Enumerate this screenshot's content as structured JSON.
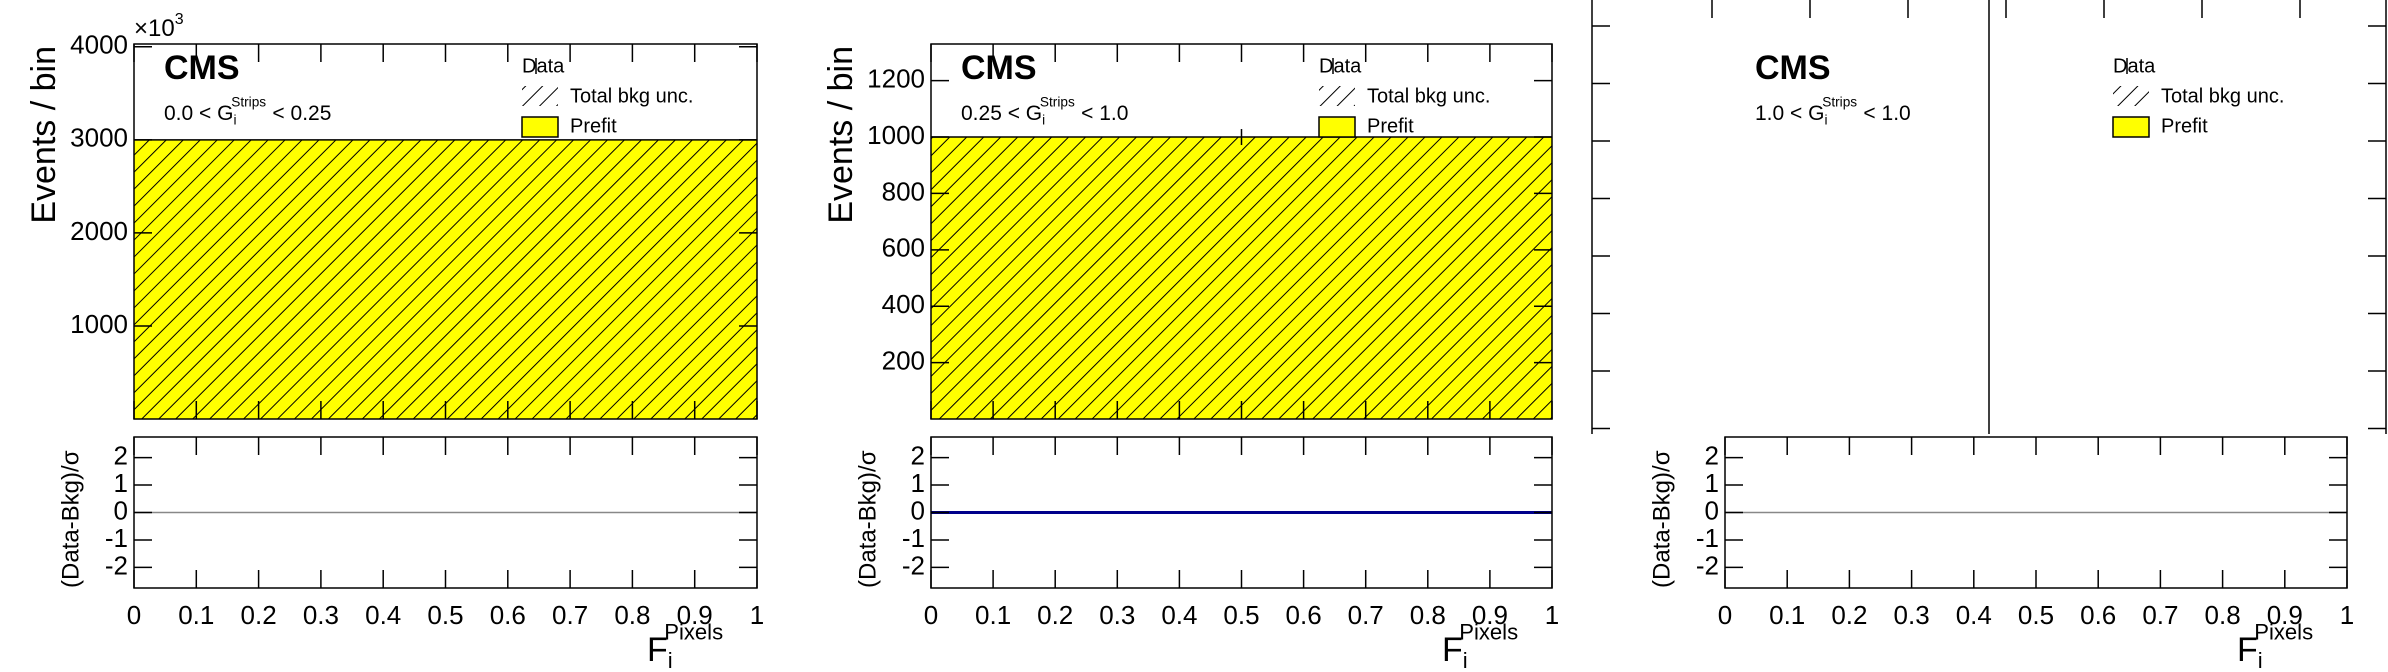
{
  "chart_data": [
    {
      "type": "histogram",
      "cms": "CMS",
      "region_label": {
        "left": "0.0 < G",
        "sub": "i",
        "sup": "Strips",
        "right": "< 0.25"
      },
      "y_label": "Events / bin",
      "y_multiplier": {
        "base": "×10",
        "exp": "3"
      },
      "ratio_label": "(Data-Bkg)/σ",
      "x_label": {
        "main": "F",
        "sub": "i",
        "sup": "Pixels"
      },
      "data_name": "Data",
      "uncertainty_name": "Total bkg unc.",
      "bins": [
        0,
        1
      ],
      "series": [
        {
          "name": "Prefit",
          "color": "#ffff00",
          "values": [
            3000
          ]
        }
      ],
      "xlim": [
        0,
        1
      ],
      "xticks": [
        0,
        0.1,
        0.2,
        0.3,
        0.4,
        0.5,
        0.6,
        0.7,
        0.8,
        0.9,
        1
      ],
      "ylim": [
        0,
        4030
      ],
      "yticks": [
        1000,
        2000,
        3000,
        4000
      ],
      "ratio_ylim": [
        -2.75,
        2.75
      ],
      "ratio_yticks": [
        -2,
        -1,
        0,
        1,
        2
      ]
    },
    {
      "type": "histogram",
      "cms": "CMS",
      "region_label": {
        "left": "0.25 < G",
        "sub": "i",
        "sup": "Strips",
        "right": "< 1.0"
      },
      "y_label": "Events / bin",
      "ratio_label": "(Data-Bkg)/σ",
      "x_label": {
        "main": "F",
        "sub": "i",
        "sup": "Pixels"
      },
      "data_name": "Data",
      "uncertainty_name": "Total bkg unc.",
      "bins": [
        0,
        1
      ],
      "series": [
        {
          "name": "Prefit",
          "color": "#ffff00",
          "values": [
            1000
          ]
        }
      ],
      "data": {
        "x": [
          0.5
        ],
        "values": [
          1000
        ]
      },
      "ratio": {
        "color": "#00008b",
        "values": [
          0
        ]
      },
      "xlim": [
        0,
        1
      ],
      "xticks": [
        0,
        0.1,
        0.2,
        0.3,
        0.4,
        0.5,
        0.6,
        0.7,
        0.8,
        0.9,
        1
      ],
      "ylim": [
        0,
        1330
      ],
      "yticks": [
        200,
        400,
        600,
        800,
        1000,
        1200
      ],
      "ratio_ylim": [
        -2.75,
        2.75
      ],
      "ratio_yticks": [
        -2,
        -1,
        0,
        1,
        2
      ]
    },
    {
      "type": "histogram",
      "cms": "CMS",
      "region_label": {
        "left": "1.0 < G",
        "sub": "i",
        "sup": "Strips",
        "right": "< 1.0"
      },
      "ratio_label": "(Data-Bkg)/σ",
      "x_label": {
        "main": "F",
        "sub": "i",
        "sup": "Pixels"
      },
      "data_name": "Data",
      "uncertainty_name": "Total bkg unc.",
      "series": [
        {
          "name": "Prefit",
          "color": "#ffff00",
          "values": []
        }
      ],
      "xlim": [
        0,
        1
      ],
      "xticks": [
        0,
        0.1,
        0.2,
        0.3,
        0.4,
        0.5,
        0.6,
        0.7,
        0.8,
        0.9,
        1
      ],
      "ratio_ylim": [
        -2.75,
        2.75
      ],
      "ratio_yticks": [
        -2,
        -1,
        0,
        1,
        2
      ]
    }
  ]
}
